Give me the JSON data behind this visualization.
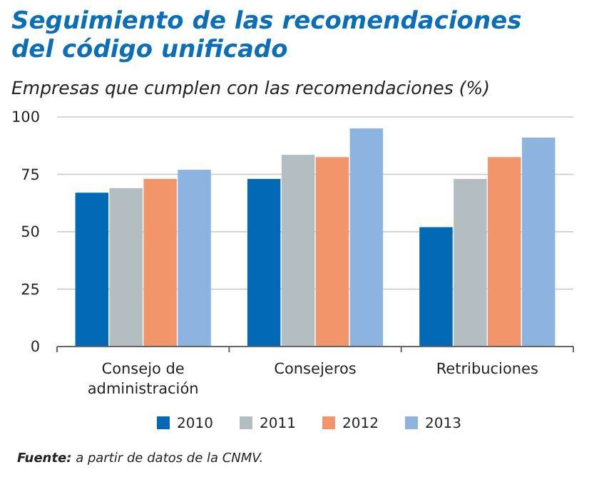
{
  "chart_data": {
    "type": "bar",
    "title": "Seguimiento de las recomendaciones del código unificado",
    "subtitle": "Empresas que cumplen con las recomendaciones (%)",
    "categories": [
      "Consejo de administración",
      "Consejeros",
      "Retribuciones"
    ],
    "series": [
      {
        "name": "2010",
        "color": "#0068b4",
        "values": [
          67,
          73,
          52
        ]
      },
      {
        "name": "2011",
        "color": "#b3bec3",
        "values": [
          69,
          83.5,
          73
        ]
      },
      {
        "name": "2012",
        "color": "#f2956a",
        "values": [
          73,
          82.5,
          82.5
        ]
      },
      {
        "name": "2013",
        "color": "#8db3e0",
        "values": [
          77,
          95,
          91
        ]
      }
    ],
    "ylim": [
      0,
      100
    ],
    "yticks": [
      0,
      25,
      50,
      75,
      100
    ],
    "grid": "y",
    "legend": "bottom",
    "annotations": [
      "Fuente: a partir de datos de la CNMV."
    ]
  }
}
